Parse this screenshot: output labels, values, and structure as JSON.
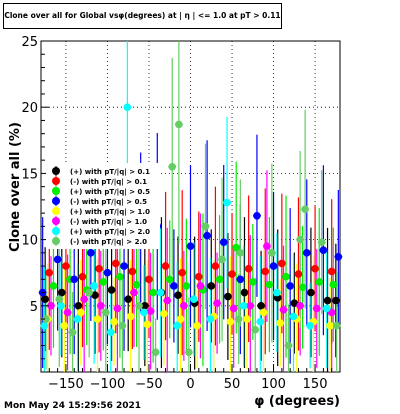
{
  "chart_data": {
    "type": "scatter",
    "title": "Clone  over all for Global vsφ(degrees) at | η | <= 1.0 at pT > 0.11",
    "xlabel": "φ (degrees)",
    "ylabel": "Clone  over all (%)",
    "xlim": [
      -180,
      180
    ],
    "ylim": [
      0,
      25
    ],
    "x_ticks": [
      -150,
      -100,
      -50,
      0,
      50,
      100,
      150
    ],
    "x_tick_labels": [
      "−150",
      "−100",
      "−50",
      "0",
      "50",
      "100",
      "150"
    ],
    "y_ticks": [
      5,
      10,
      15,
      20,
      25
    ],
    "y_tick_labels": [
      "5",
      "10",
      "15",
      "20",
      "25"
    ],
    "grid": true,
    "legend_position": "left",
    "series": [
      {
        "name": "(+) with pT/|q| > 0.1",
        "color": "#000000",
        "x": [
          -175,
          -155,
          -135,
          -115,
          -95,
          -75,
          -55,
          -35,
          -15,
          5,
          25,
          45,
          65,
          85,
          105,
          125,
          145,
          165,
          175
        ],
        "y": [
          5.5,
          6.0,
          5.0,
          5.8,
          6.2,
          5.5,
          5.0,
          6.0,
          5.8,
          5.2,
          6.5,
          5.7,
          6.0,
          5.0,
          5.6,
          5.2,
          6.0,
          5.4,
          5.4
        ]
      },
      {
        "name": "(-) with pT/|q| > 0.1",
        "color": "#ff0000",
        "x": [
          -170,
          -150,
          -130,
          -110,
          -90,
          -70,
          -50,
          -30,
          -10,
          10,
          30,
          50,
          70,
          90,
          110,
          130,
          150,
          170
        ],
        "y": [
          7.5,
          8.0,
          7.2,
          7.8,
          8.2,
          7.6,
          7.0,
          8.0,
          7.5,
          7.2,
          8.0,
          7.4,
          7.8,
          7.6,
          8.2,
          7.4,
          7.8,
          7.6
        ]
      },
      {
        "name": "(+) with pT/|q| > 0.5",
        "color": "#00ee00",
        "x": [
          -165,
          -145,
          -125,
          -105,
          -85,
          -65,
          -45,
          -25,
          -5,
          15,
          35,
          55,
          75,
          95,
          115,
          135,
          155,
          172
        ],
        "y": [
          6.5,
          7.0,
          6.2,
          6.8,
          7.2,
          6.6,
          6.0,
          7.0,
          6.5,
          6.2,
          7.0,
          9.4,
          6.8,
          6.6,
          7.2,
          6.4,
          6.8,
          6.6
        ]
      },
      {
        "name": "(-) with pT/|q| > 0.5",
        "color": "#0000ff",
        "x": [
          -178,
          -160,
          -140,
          -120,
          -100,
          -80,
          -60,
          -40,
          -20,
          0,
          20,
          40,
          60,
          80,
          100,
          120,
          140,
          160,
          178
        ],
        "y": [
          6.0,
          8.5,
          7.0,
          9.0,
          7.5,
          8.0,
          10.5,
          11.0,
          6.5,
          9.5,
          10.3,
          9.8,
          7.0,
          11.8,
          8.0,
          6.5,
          9.0,
          9.2,
          8.7
        ]
      },
      {
        "name": "(+) with pT/|q| > 1.0",
        "color": "#ffff00",
        "x": [
          -172,
          -152,
          -132,
          -112,
          -92,
          -72,
          -52,
          -32,
          -12,
          8,
          28,
          48,
          68,
          88,
          108,
          128,
          148,
          168
        ],
        "y": [
          4.0,
          3.5,
          4.5,
          4.0,
          3.8,
          4.2,
          3.6,
          4.4,
          4.0,
          3.5,
          4.2,
          3.8,
          4.0,
          4.5,
          3.7,
          4.0,
          3.8,
          3.5
        ]
      },
      {
        "name": "(-) with pT/|q| > 1.0",
        "color": "#ff00ff",
        "x": [
          -168,
          -148,
          -128,
          -108,
          -88,
          -68,
          -48,
          -28,
          -8,
          12,
          32,
          52,
          72,
          92,
          112,
          132,
          152,
          170
        ],
        "y": [
          5.0,
          4.5,
          5.5,
          5.0,
          4.8,
          6.0,
          4.6,
          5.4,
          5.0,
          6.5,
          5.2,
          4.8,
          5.0,
          9.5,
          4.7,
          5.0,
          4.8,
          4.5
        ]
      },
      {
        "name": "(+) with pT/|q| > 2.0",
        "color": "#00ffff",
        "x": [
          -176,
          -156,
          -136,
          -116,
          -96,
          -76,
          -56,
          -36,
          -16,
          4,
          24,
          44,
          64,
          84,
          104,
          124,
          144,
          164
        ],
        "y": [
          3.5,
          5.0,
          4.0,
          6.5,
          3.0,
          20.0,
          4.5,
          6.0,
          3.5,
          5.5,
          4.0,
          12.8,
          5.0,
          3.8,
          6.0,
          4.2,
          3.5,
          4.8
        ]
      },
      {
        "name": "(-) with pT/|q| > 2.0",
        "color": "#66cc66",
        "x": [
          -174,
          -158,
          -142,
          -122,
          -102,
          -82,
          -62,
          -42,
          -22,
          -2,
          18,
          38,
          58,
          78,
          98,
          118,
          138,
          158,
          176
        ],
        "y": [
          4.0,
          5.5,
          3.0,
          6.0,
          4.5,
          3.5,
          5.0,
          1.5,
          15.5,
          1.5,
          11.0,
          8.5,
          4.0,
          3.2,
          9.0,
          2.0,
          12.3,
          9.8,
          3.5
        ]
      },
      {
        "name": "",
        "color": "#66cc66",
        "x": [
          -14,
          60,
          132
        ],
        "y": [
          18.7,
          9.0,
          10.0
        ]
      }
    ]
  },
  "footer": {
    "date": "Mon May 24 15:29:56 2021"
  }
}
